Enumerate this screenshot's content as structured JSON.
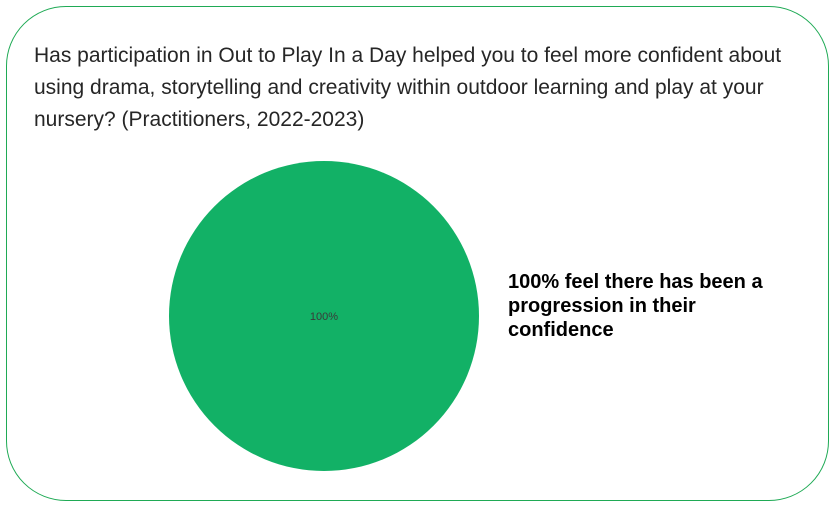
{
  "question": "Has participation in Out to Play In a Day helped you to feel more confident about using drama, storytelling and creativity within outdoor learning and play at your nursery? (Practitioners, 2022-2023)",
  "callout": "100% feel there has been a progression in their confidence",
  "colors": {
    "border": "#1faa55",
    "slice": "#12b166",
    "text": "#262626"
  },
  "chart_data": {
    "type": "pie",
    "categories": [
      ""
    ],
    "values": [
      100
    ],
    "data_labels": [
      "100%"
    ],
    "colors": [
      "#12b166"
    ]
  }
}
